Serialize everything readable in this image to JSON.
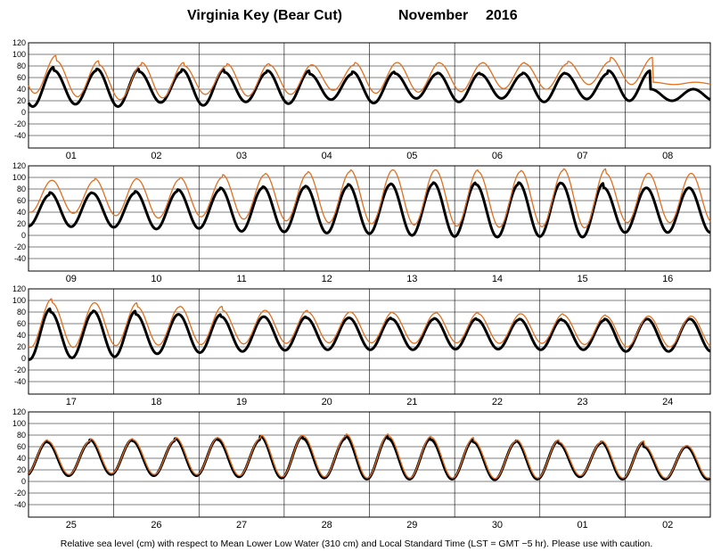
{
  "title": {
    "station": "Virginia Key (Bear Cut)",
    "month": "November",
    "year": "2016"
  },
  "caption": "Relative sea level (cm) with respect to Mean Lower Low Water (310 cm) and Local Standard Time (LST = GMT −5 hr). Please use with caution.",
  "colors": {
    "observed": "#e07020",
    "predicted": "#000000",
    "grid": "#000000"
  },
  "chart_data": [
    {
      "type": "line",
      "ylim": [
        -40,
        120
      ],
      "yticks": [
        120,
        100,
        80,
        60,
        40,
        20,
        0,
        -20,
        -40
      ],
      "x_days": [
        "01",
        "02",
        "03",
        "04",
        "05",
        "06",
        "07",
        "08"
      ],
      "series": [
        {
          "key": "observed",
          "phase": 0.35,
          "max": [
            98,
            89,
            82,
            86,
            80,
            84,
            82,
            82,
            86,
            86,
            85,
            86,
            84,
            88,
            95,
            52
          ],
          "min": [
            33,
            27,
            22,
            25,
            31,
            28,
            31,
            38,
            33,
            35,
            36,
            41,
            40,
            48
          ]
        },
        {
          "key": "predicted",
          "phase": 0.4,
          "max": [
            78,
            72,
            75,
            70,
            74,
            69,
            72,
            66,
            70,
            67,
            68,
            66,
            68,
            67,
            72,
            40
          ],
          "min": [
            10,
            14,
            10,
            17,
            12,
            18,
            15,
            22,
            16,
            24,
            18,
            24,
            18,
            23,
            20
          ]
        }
      ]
    },
    {
      "type": "line",
      "ylim": [
        -40,
        120
      ],
      "yticks": [
        120,
        100,
        80,
        60,
        40,
        20,
        0,
        -20,
        -40
      ],
      "x_days": [
        "09",
        "10",
        "11",
        "12",
        "13",
        "14",
        "15",
        "16"
      ],
      "series": [
        {
          "key": "observed",
          "phase": 0.45,
          "max": [
            95,
            95,
            98,
            97,
            100,
            105,
            107,
            110,
            113,
            113,
            113,
            110,
            112,
            115,
            107
          ],
          "min": [
            40,
            38,
            34,
            30,
            32,
            28,
            25,
            22,
            20,
            18,
            16,
            14,
            15,
            13,
            22
          ]
        },
        {
          "key": "predicted",
          "phase": 0.5,
          "max": [
            70,
            74,
            73,
            76,
            79,
            82,
            84,
            85,
            88,
            89,
            91,
            88,
            91,
            90,
            82
          ],
          "min": [
            16,
            15,
            14,
            11,
            12,
            7,
            6,
            4,
            3,
            0,
            -2,
            -3,
            -2,
            -3,
            5
          ]
        }
      ]
    },
    {
      "type": "line",
      "ylim": [
        -40,
        120
      ],
      "yticks": [
        120,
        100,
        80,
        60,
        40,
        20,
        0,
        -20,
        -40
      ],
      "x_days": [
        "17",
        "18",
        "19",
        "20",
        "21",
        "22",
        "23",
        "24"
      ],
      "series": [
        {
          "key": "observed",
          "phase": 0.45,
          "max": [
            103,
            96,
            96,
            89,
            90,
            83,
            83,
            80,
            80,
            78,
            79,
            77,
            77,
            75,
            73
          ],
          "min": [
            19,
            19,
            22,
            23,
            24,
            25,
            26,
            27,
            27,
            26,
            27,
            26,
            26,
            24,
            20
          ]
        },
        {
          "key": "predicted",
          "phase": 0.48,
          "max": [
            86,
            80,
            82,
            76,
            76,
            72,
            72,
            70,
            70,
            68,
            69,
            67,
            68,
            66,
            68
          ],
          "min": [
            -2,
            1,
            3,
            8,
            10,
            12,
            14,
            15,
            15,
            15,
            16,
            16,
            15,
            15,
            12
          ]
        }
      ]
    },
    {
      "type": "line",
      "ylim": [
        -40,
        120
      ],
      "yticks": [
        120,
        100,
        80,
        60,
        40,
        20,
        0,
        -20,
        -40
      ],
      "x_days": [
        "25",
        "26",
        "27",
        "28",
        "29",
        "30",
        "01",
        "02"
      ],
      "series": [
        {
          "key": "observed",
          "phase": 0.55,
          "max": [
            72,
            70,
            74,
            72,
            76,
            75,
            80,
            78,
            82,
            78,
            76,
            70,
            72,
            68,
            70,
            62
          ],
          "min": [
            12,
            12,
            14,
            12,
            12,
            10,
            8,
            8,
            6,
            6,
            6,
            5,
            6,
            10,
            6
          ]
        },
        {
          "key": "predicted",
          "phase": 0.56,
          "max": [
            69,
            68,
            72,
            70,
            74,
            72,
            78,
            74,
            78,
            74,
            72,
            68,
            70,
            66,
            68,
            60
          ],
          "min": [
            10,
            10,
            12,
            10,
            10,
            8,
            6,
            6,
            4,
            4,
            4,
            3,
            4,
            8,
            4
          ]
        }
      ]
    }
  ]
}
